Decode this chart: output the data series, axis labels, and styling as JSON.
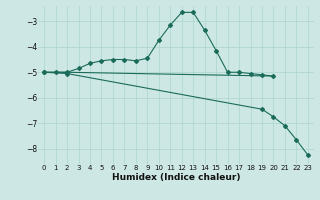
{
  "xlabel": "Humidex (Indice chaleur)",
  "background_color": "#cde8e4",
  "grid_color": "#b0d8d0",
  "line_color": "#1a6b5a",
  "xlim": [
    -0.5,
    23.5
  ],
  "ylim": [
    -8.6,
    -2.4
  ],
  "yticks": [
    -8,
    -7,
    -6,
    -5,
    -4,
    -3
  ],
  "xticks": [
    0,
    1,
    2,
    3,
    4,
    5,
    6,
    7,
    8,
    9,
    10,
    11,
    12,
    13,
    14,
    15,
    16,
    17,
    18,
    19,
    20,
    21,
    22,
    23
  ],
  "line1_x": [
    0,
    1,
    2,
    3,
    4,
    5,
    6,
    7,
    8,
    9,
    10,
    11,
    12,
    13,
    14,
    15,
    16,
    17,
    18,
    19,
    20
  ],
  "line1_y": [
    -5.0,
    -5.0,
    -5.0,
    -4.85,
    -4.65,
    -4.55,
    -4.5,
    -4.5,
    -4.55,
    -4.45,
    -3.75,
    -3.15,
    -2.65,
    -2.65,
    -3.35,
    -4.15,
    -5.0,
    -5.0,
    -5.05,
    -5.1,
    -5.15
  ],
  "line2_x": [
    0,
    2,
    20
  ],
  "line2_y": [
    -5.0,
    -5.0,
    -5.15
  ],
  "line3_x": [
    0,
    2,
    19,
    20,
    21,
    22,
    23
  ],
  "line3_y": [
    -5.0,
    -5.05,
    -6.45,
    -6.75,
    -7.1,
    -7.65,
    -8.25
  ]
}
